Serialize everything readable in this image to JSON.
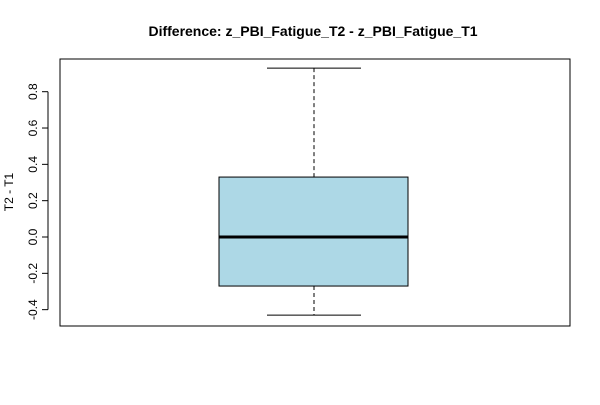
{
  "chart_data": {
    "type": "boxplot",
    "title": "Difference: z_PBI_Fatigue_T2 - z_PBI_Fatigue_T1",
    "xlabel": "",
    "ylabel": "T2 - T1",
    "ylim": [
      -0.49,
      0.98
    ],
    "yticks": [
      -0.4,
      -0.2,
      0.0,
      0.2,
      0.4,
      0.6,
      0.8
    ],
    "ytick_labels": [
      "-0.4",
      "-0.2",
      "0.0",
      "0.2",
      "0.4",
      "0.6",
      "0.8"
    ],
    "grid": false,
    "legend": "none",
    "box": {
      "min": -0.43,
      "q1": -0.27,
      "median": 0.0,
      "q3": 0.33,
      "max": 0.93
    },
    "colors": {
      "box_fill": "#ADD8E6",
      "stroke": "#000000"
    }
  }
}
